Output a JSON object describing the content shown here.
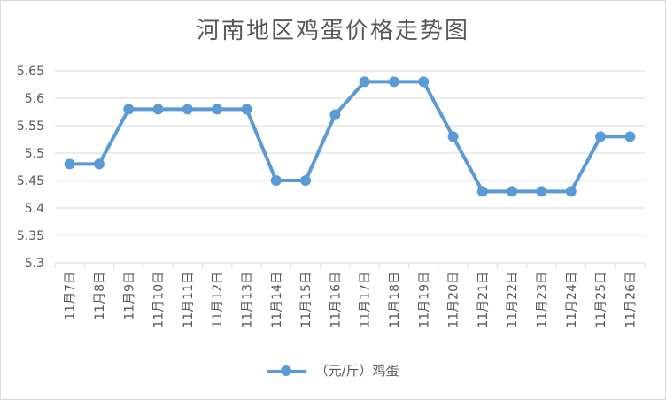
{
  "chart_data": {
    "type": "line",
    "title": "河南地区鸡蛋价格走势图",
    "categories": [
      "11月7日",
      "11月8日",
      "11月9日",
      "11月10日",
      "11月11日",
      "11月12日",
      "11月13日",
      "11月14日",
      "11月15日",
      "11月16日",
      "11月17日",
      "11月18日",
      "11月19日",
      "11月20日",
      "11月21日",
      "11月22日",
      "11月23日",
      "11月24日",
      "11月25日",
      "11月26日"
    ],
    "series": [
      {
        "name": "（元/斤）鸡蛋",
        "values": [
          5.48,
          5.48,
          5.58,
          5.58,
          5.58,
          5.58,
          5.58,
          5.45,
          5.45,
          5.57,
          5.63,
          5.63,
          5.63,
          5.53,
          5.43,
          5.43,
          5.43,
          5.43,
          5.53,
          5.53
        ],
        "color": "#5b9bd5"
      }
    ],
    "y_ticks": [
      "5.3",
      "5.35",
      "5.4",
      "5.45",
      "5.5",
      "5.55",
      "5.6",
      "5.65"
    ],
    "ylim": [
      5.3,
      5.65
    ],
    "grid": true,
    "legend_position": "bottom"
  }
}
